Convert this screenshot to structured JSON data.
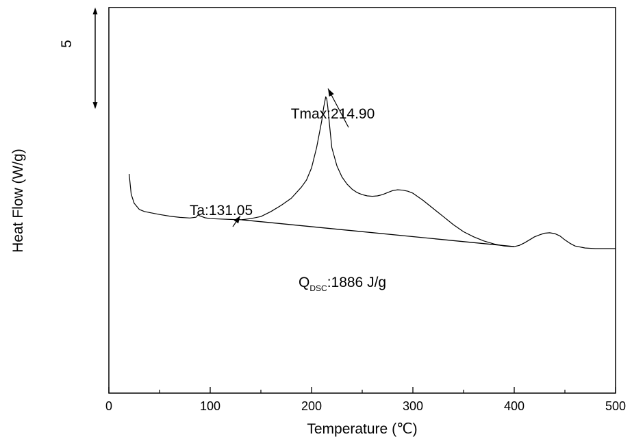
{
  "chart_data": {
    "type": "line",
    "title": "",
    "xlabel": "Temperature (℃)",
    "ylabel": "Heat Flow (W/g)",
    "xlim": [
      0,
      500
    ],
    "ylim": [
      -10,
      9
    ],
    "x_ticks": [
      "0",
      "100",
      "200",
      "300",
      "400",
      "500"
    ],
    "x_minor_ticks": [
      50,
      150,
      250,
      350,
      450
    ],
    "y_ticks_visible": false,
    "grid": false,
    "legend": null,
    "scale_bar": {
      "label": "5",
      "from": 4,
      "to": 9,
      "units": "W/g"
    },
    "series": [
      {
        "x": [
          20,
          22,
          25,
          30,
          35,
          40,
          50,
          60,
          70,
          80,
          86,
          88,
          90,
          95,
          100,
          110,
          120,
          131,
          140,
          150,
          160,
          170,
          180,
          190,
          195,
          200,
          205,
          210,
          212,
          214,
          215,
          216,
          218,
          220,
          225,
          230,
          235,
          240,
          245,
          250,
          255,
          260,
          265,
          270,
          275,
          280,
          285,
          290,
          295,
          300,
          310,
          320,
          330,
          340,
          350,
          360,
          370,
          380,
          390,
          395,
          400,
          405,
          410,
          415,
          420,
          425,
          430,
          435,
          440,
          445,
          450,
          455,
          460,
          470,
          480,
          490,
          500
        ],
        "y": [
          0.8,
          -0.2,
          -0.65,
          -0.95,
          -1.05,
          -1.1,
          -1.2,
          -1.28,
          -1.34,
          -1.37,
          -1.33,
          -1.22,
          -1.27,
          -1.36,
          -1.4,
          -1.42,
          -1.44,
          -1.46,
          -1.4,
          -1.3,
          -1.05,
          -0.75,
          -0.4,
          0.15,
          0.5,
          1.1,
          2.1,
          3.4,
          4.1,
          4.6,
          4.5,
          4.1,
          3.1,
          2.1,
          1.2,
          0.65,
          0.3,
          0.05,
          -0.12,
          -0.22,
          -0.28,
          -0.3,
          -0.28,
          -0.22,
          -0.12,
          -0.02,
          0.02,
          0.0,
          -0.05,
          -0.15,
          -0.5,
          -0.9,
          -1.3,
          -1.7,
          -2.05,
          -2.3,
          -2.5,
          -2.65,
          -2.75,
          -2.77,
          -2.78,
          -2.72,
          -2.6,
          -2.45,
          -2.3,
          -2.2,
          -2.12,
          -2.1,
          -2.14,
          -2.25,
          -2.45,
          -2.62,
          -2.75,
          -2.85,
          -2.88,
          -2.88,
          -2.88
        ]
      }
    ],
    "baseline": {
      "x": [
        131,
        400
      ],
      "y": [
        -1.46,
        -2.78
      ]
    },
    "annotations": [
      {
        "name": "Tmax",
        "text": "Tmax:214.90",
        "x": 214.9,
        "y": 4.6
      },
      {
        "name": "Ta",
        "text": "Ta:131.05",
        "x": 131.05,
        "y": -1.46
      },
      {
        "name": "Q",
        "main": "Q",
        "sub": "DSC",
        "rest": ":1886 J/g"
      }
    ]
  }
}
